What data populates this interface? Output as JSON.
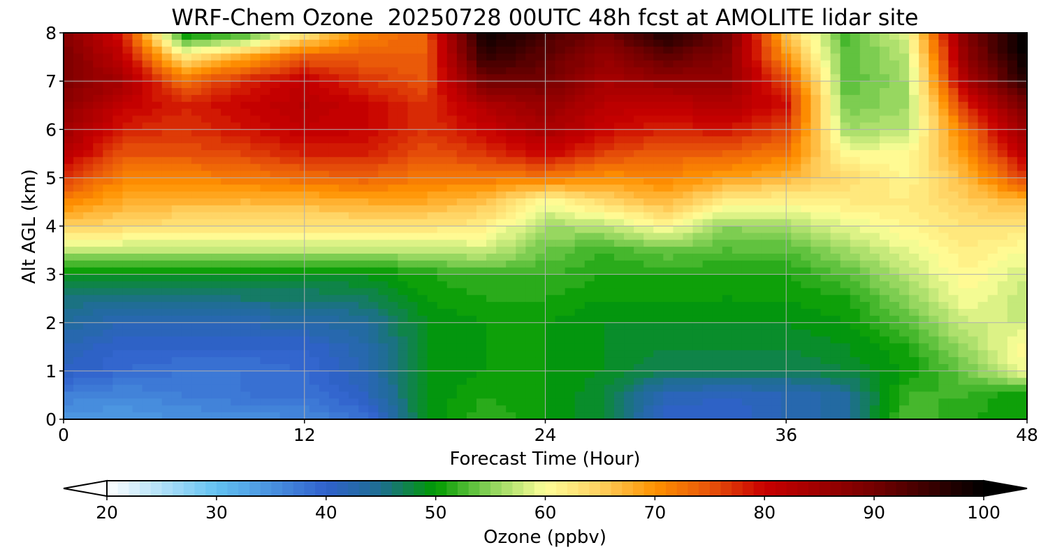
{
  "chart_data": {
    "type": "heatmap",
    "title": "WRF-Chem Ozone  20250728 00UTC 48h fcst at AMOLITE lidar site",
    "xlabel": "Forecast Time (Hour)",
    "ylabel": "Alt AGL (km)",
    "xlim": [
      0,
      48
    ],
    "ylim": [
      0,
      8
    ],
    "xticks": [
      "0",
      "12",
      "24",
      "36",
      "48"
    ],
    "yticks": [
      "0",
      "1",
      "2",
      "3",
      "4",
      "5",
      "6",
      "7",
      "8"
    ],
    "grid": true,
    "x_hours": [
      0,
      3,
      6,
      9,
      12,
      15,
      18,
      21,
      24,
      27,
      30,
      33,
      36,
      39,
      42,
      45,
      48
    ],
    "z_km": [
      0,
      0.5,
      1,
      1.5,
      2,
      2.5,
      3,
      3.5,
      4,
      4.5,
      5,
      5.5,
      6,
      6.5,
      7,
      7.5,
      8
    ],
    "ozone_ppbv": [
      [
        34,
        34,
        35,
        35,
        36,
        38,
        49,
        52,
        50,
        48,
        40,
        40,
        42,
        44,
        53,
        51,
        50
      ],
      [
        37,
        36,
        37,
        38,
        38,
        41,
        49,
        51,
        50,
        48,
        42,
        41,
        42,
        44,
        52,
        52,
        50
      ],
      [
        41,
        39,
        38,
        38,
        39,
        42,
        49,
        50,
        50,
        49,
        47,
        47,
        47,
        48,
        50,
        54,
        60
      ],
      [
        42,
        40,
        40,
        40,
        40,
        43,
        49,
        50,
        50,
        49,
        48,
        48,
        48,
        49,
        51,
        56,
        61
      ],
      [
        44,
        42,
        42,
        42,
        43,
        44,
        49,
        50,
        50,
        49,
        49,
        49,
        49,
        50,
        53,
        58,
        58
      ],
      [
        46,
        45,
        45,
        46,
        46,
        47,
        50,
        51,
        51,
        50,
        50,
        50,
        50,
        51,
        55,
        60,
        57
      ],
      [
        49,
        49,
        49,
        49,
        49,
        49,
        51,
        52,
        52,
        51,
        51,
        51,
        51,
        53,
        57,
        61,
        58
      ],
      [
        57,
        57,
        57,
        57,
        57,
        57,
        57,
        58,
        54,
        52,
        54,
        53,
        53,
        56,
        59,
        62,
        60
      ],
      [
        65,
        64,
        63,
        63,
        63,
        63,
        63,
        62,
        56,
        57,
        61,
        55,
        56,
        59,
        61,
        63,
        63
      ],
      [
        71,
        68,
        67,
        67,
        67,
        68,
        68,
        66,
        60,
        64,
        67,
        62,
        61,
        62,
        62,
        65,
        67
      ],
      [
        77,
        71,
        71,
        72,
        73,
        74,
        72,
        72,
        72,
        70,
        71,
        69,
        67,
        64,
        61,
        67,
        77
      ],
      [
        82,
        75,
        75,
        76,
        78,
        78,
        75,
        77,
        80,
        76,
        74,
        74,
        72,
        60,
        60,
        70,
        82
      ],
      [
        85,
        78,
        77,
        79,
        81,
        80,
        77,
        80,
        84,
        80,
        78,
        79,
        76,
        56,
        57,
        73,
        86
      ],
      [
        87,
        81,
        78,
        80,
        82,
        80,
        77,
        83,
        86,
        82,
        81,
        83,
        79,
        54,
        56,
        78,
        90
      ],
      [
        89,
        84,
        73,
        78,
        81,
        77,
        75,
        90,
        90,
        84,
        86,
        86,
        76,
        53,
        56,
        84,
        97
      ],
      [
        89,
        81,
        62,
        68,
        74,
        74,
        74,
        96,
        92,
        86,
        92,
        88,
        70,
        53,
        57,
        87,
        100
      ],
      [
        88,
        78,
        49,
        51,
        62,
        71,
        74,
        100,
        94,
        90,
        98,
        90,
        66,
        52,
        59,
        89,
        101
      ]
    ],
    "colorbar": {
      "label": "Ozone  (ppbv)",
      "min": 20,
      "max": 100,
      "step": 1,
      "extend": "both",
      "ticks": [
        "20",
        "30",
        "40",
        "50",
        "60",
        "70",
        "80",
        "90",
        "100"
      ],
      "color_stops": [
        {
          "v": 20,
          "c": "#ffffff"
        },
        {
          "v": 30,
          "c": "#63c2f2"
        },
        {
          "v": 40,
          "c": "#3061cc"
        },
        {
          "v": 45,
          "c": "#1e6e90"
        },
        {
          "v": 50,
          "c": "#009a00"
        },
        {
          "v": 55,
          "c": "#8bd35a"
        },
        {
          "v": 60,
          "c": "#ffff99"
        },
        {
          "v": 65,
          "c": "#ffd060"
        },
        {
          "v": 70,
          "c": "#ff9200"
        },
        {
          "v": 75,
          "c": "#e8540a"
        },
        {
          "v": 80,
          "c": "#c80000"
        },
        {
          "v": 90,
          "c": "#750000"
        },
        {
          "v": 100,
          "c": "#000000"
        }
      ]
    }
  }
}
